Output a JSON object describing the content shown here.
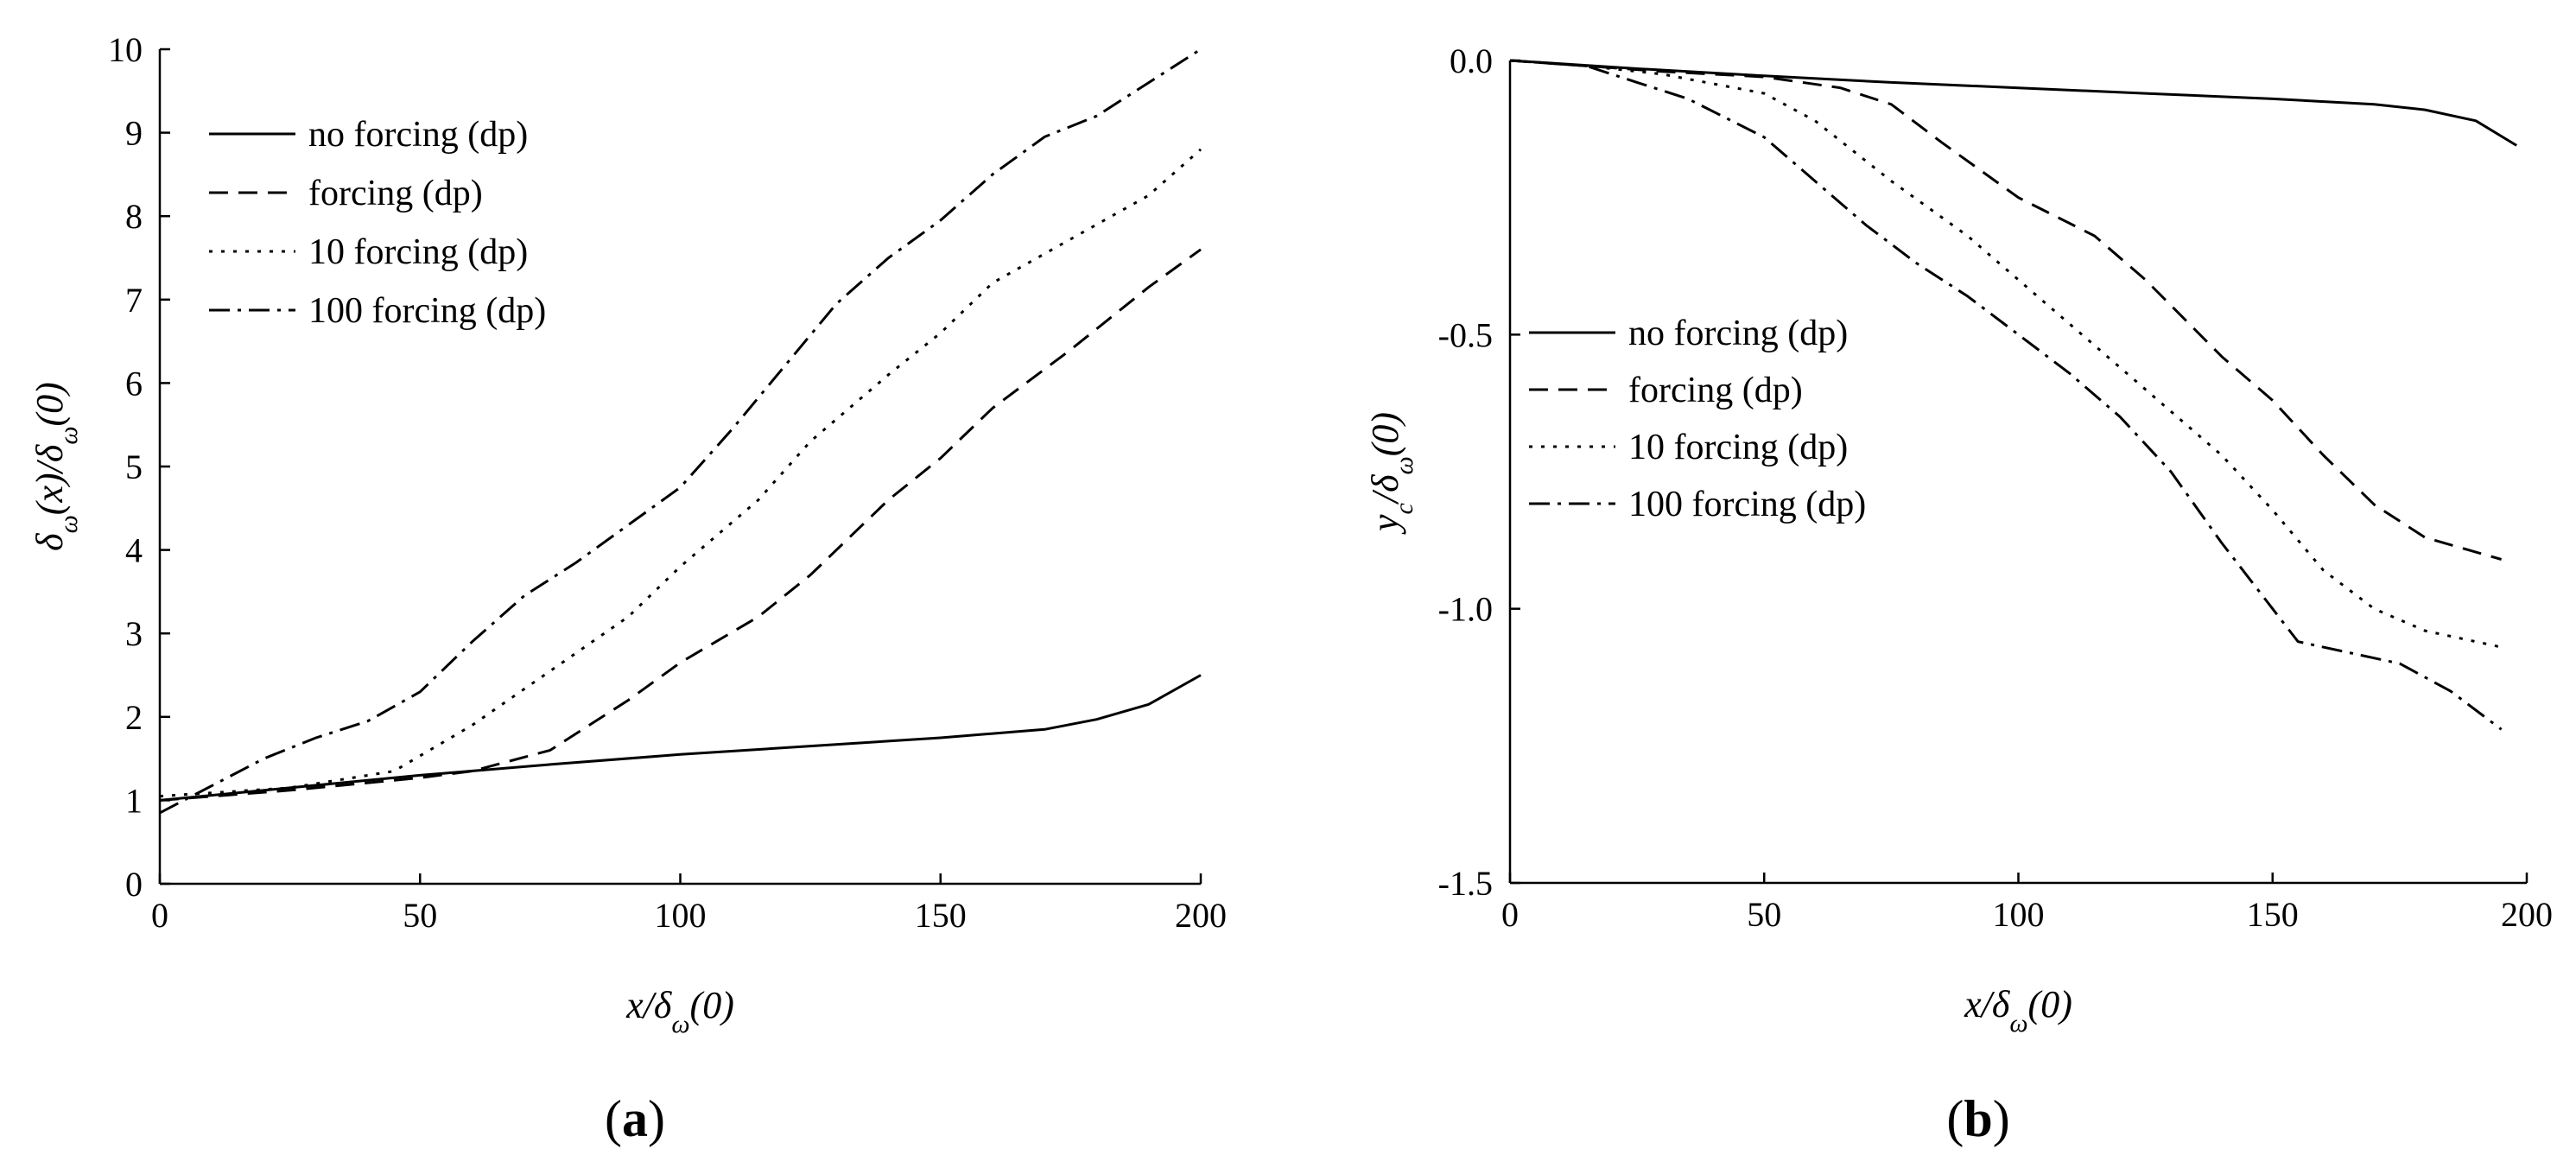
{
  "chart_data": [
    {
      "panel": "(a)",
      "panel_letter": "a",
      "type": "line",
      "title": "",
      "xlabel": "x/δω(0)",
      "ylabel": "δω(x)/δω(0)",
      "xlim": [
        0,
        200
      ],
      "ylim": [
        0,
        10
      ],
      "xticks": [
        0,
        50,
        100,
        150,
        200
      ],
      "yticks": [
        0,
        1,
        2,
        3,
        4,
        5,
        6,
        7,
        8,
        9,
        10
      ],
      "legend_position": "top-left",
      "series": [
        {
          "name": "no forcing (dp)",
          "style": "solid",
          "x": [
            0,
            25,
            50,
            75,
            100,
            125,
            150,
            170,
            180,
            190,
            200
          ],
          "y": [
            1.0,
            1.15,
            1.3,
            1.43,
            1.55,
            1.65,
            1.75,
            1.85,
            1.97,
            2.15,
            2.5
          ]
        },
        {
          "name": "forcing (dp)",
          "style": "dashed",
          "x": [
            0,
            25,
            50,
            60,
            75,
            90,
            100,
            115,
            125,
            140,
            150,
            160,
            175,
            190,
            200
          ],
          "y": [
            1.0,
            1.12,
            1.27,
            1.35,
            1.6,
            2.2,
            2.65,
            3.2,
            3.7,
            4.6,
            5.1,
            5.7,
            6.4,
            7.15,
            7.6
          ]
        },
        {
          "name": "10 forcing (dp)",
          "style": "dotted",
          "x": [
            0,
            25,
            45,
            60,
            75,
            90,
            100,
            115,
            125,
            140,
            150,
            160,
            170,
            180,
            190,
            200
          ],
          "y": [
            1.05,
            1.15,
            1.35,
            1.9,
            2.55,
            3.2,
            3.8,
            4.6,
            5.3,
            6.1,
            6.6,
            7.2,
            7.55,
            7.9,
            8.25,
            8.8
          ]
        },
        {
          "name": "100 forcing (dp)",
          "style": "dash-dot",
          "x": [
            0,
            20,
            30,
            40,
            50,
            60,
            70,
            80,
            90,
            100,
            110,
            120,
            130,
            140,
            150,
            160,
            170,
            180,
            190,
            200
          ],
          "y": [
            0.85,
            1.5,
            1.75,
            1.95,
            2.3,
            2.9,
            3.45,
            3.85,
            4.3,
            4.75,
            5.45,
            6.2,
            6.95,
            7.5,
            7.95,
            8.5,
            8.95,
            9.2,
            9.6,
            10.0
          ]
        }
      ]
    },
    {
      "panel": "(b)",
      "panel_letter": "b",
      "type": "line",
      "title": "",
      "xlabel": "x/δω(0)",
      "ylabel": "yc/δω(0)",
      "xlim": [
        0,
        200
      ],
      "ylim": [
        -1.5,
        0.0
      ],
      "xticks": [
        0,
        50,
        100,
        150,
        200
      ],
      "yticks": [
        0.0,
        -0.5,
        -1.0,
        -1.5
      ],
      "ytick_labels": [
        "0.0",
        "-0.5",
        "-1.0",
        "-1.5"
      ],
      "legend_position": "center-left",
      "series": [
        {
          "name": "no forcing (dp)",
          "style": "solid",
          "x": [
            0,
            25,
            50,
            75,
            100,
            125,
            150,
            170,
            180,
            190,
            198
          ],
          "y": [
            0.0,
            -0.015,
            -0.028,
            -0.04,
            -0.05,
            -0.06,
            -0.07,
            -0.08,
            -0.09,
            -0.11,
            -0.155
          ]
        },
        {
          "name": "forcing (dp)",
          "style": "dashed",
          "x": [
            0,
            15,
            30,
            50,
            65,
            75,
            85,
            100,
            115,
            125,
            140,
            150,
            160,
            170,
            180,
            195
          ],
          "y": [
            0.0,
            -0.01,
            -0.02,
            -0.03,
            -0.05,
            -0.08,
            -0.15,
            -0.25,
            -0.32,
            -0.4,
            -0.54,
            -0.62,
            -0.72,
            -0.81,
            -0.87,
            -0.91
          ]
        },
        {
          "name": "10 forcing (dp)",
          "style": "dotted",
          "x": [
            0,
            15,
            30,
            50,
            60,
            75,
            90,
            100,
            115,
            125,
            140,
            150,
            160,
            170,
            180,
            195
          ],
          "y": [
            0.0,
            -0.01,
            -0.025,
            -0.06,
            -0.11,
            -0.22,
            -0.32,
            -0.4,
            -0.52,
            -0.6,
            -0.72,
            -0.82,
            -0.93,
            -1.0,
            -1.04,
            -1.07
          ]
        },
        {
          "name": "100 forcing (dp)",
          "style": "dash-dot",
          "x": [
            0,
            15,
            25,
            35,
            50,
            60,
            70,
            80,
            90,
            100,
            110,
            120,
            130,
            140,
            150,
            155,
            165,
            175,
            185,
            195
          ],
          "y": [
            0.0,
            -0.01,
            -0.04,
            -0.07,
            -0.14,
            -0.22,
            -0.3,
            -0.37,
            -0.43,
            -0.5,
            -0.57,
            -0.65,
            -0.75,
            -0.88,
            -1.0,
            -1.06,
            -1.08,
            -1.1,
            -1.15,
            -1.22
          ]
        }
      ]
    }
  ]
}
